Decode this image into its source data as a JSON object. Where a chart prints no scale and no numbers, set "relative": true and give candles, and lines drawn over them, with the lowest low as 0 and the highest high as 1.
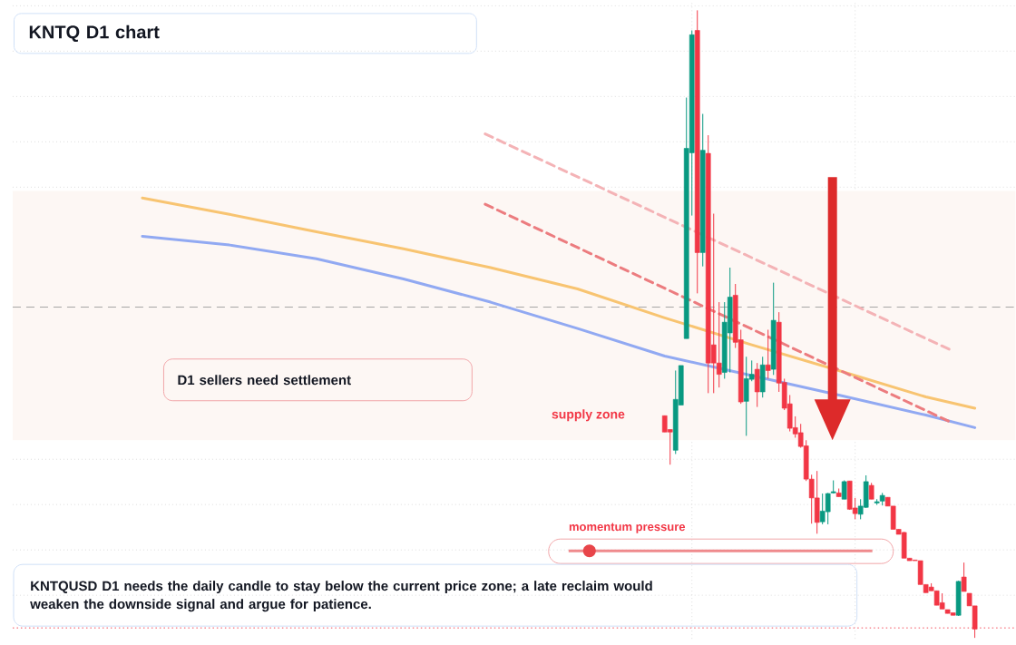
{
  "chart_data": {
    "type": "candlestick",
    "title": "KNTQ D1 chart",
    "relative": true,
    "grid": true,
    "annotations": [
      "D1 sellers need settlement",
      "momentum pressure",
      "KNTQUSD D1 needs the daily candle to stay below the current price zone; a late reclaim would weaken the downside signal and argue for patience."
    ],
    "categories": [
      null,
      null,
      null,
      null,
      null,
      null,
      null,
      null,
      null,
      null,
      null,
      null,
      null,
      null,
      null,
      null,
      null,
      null,
      null,
      null,
      null,
      null,
      null,
      null,
      null,
      null,
      null,
      null,
      null,
      null,
      null,
      null,
      null,
      null,
      null,
      null,
      null,
      null,
      null,
      null,
      null,
      null,
      null,
      null,
      null,
      null,
      null,
      null,
      null,
      null,
      null,
      null,
      null,
      null,
      null,
      null,
      null,
      null,
      null,
      null,
      null,
      null,
      null,
      null,
      null,
      null,
      null,
      null,
      null,
      null,
      null,
      null,
      null,
      null,
      null,
      null,
      null,
      null,
      null,
      null,
      null,
      null,
      null,
      null,
      null,
      null,
      null,
      null,
      null,
      null,
      null,
      null,
      null,
      null,
      null,
      null,
      null,
      null,
      null,
      null,
      null,
      null,
      null,
      null,
      null,
      null,
      null,
      null,
      null,
      null,
      null,
      null,
      null,
      null,
      null,
      null,
      null,
      null,
      null,
      null,
      null,
      null,
      null,
      null,
      null,
      null,
      null,
      null,
      null,
      null,
      null,
      null,
      null,
      null,
      null,
      null,
      null,
      null,
      null,
      null,
      null,
      null,
      null,
      null,
      null,
      null,
      null,
      null,
      null,
      null,
      null,
      null,
      null,
      null
    ],
    "ohlc": [
      null,
      null,
      null,
      null,
      null,
      null,
      null,
      null,
      null,
      null,
      null,
      null,
      null,
      null,
      null,
      null,
      null,
      null,
      null,
      null,
      null,
      null,
      null,
      null,
      null,
      null,
      null,
      null,
      null,
      null,
      null,
      null,
      null,
      null,
      null,
      null,
      null,
      null,
      null,
      null,
      null,
      null,
      null,
      null,
      null,
      null,
      null,
      null,
      null,
      null,
      null,
      null,
      null,
      null,
      null,
      null,
      null,
      null,
      null,
      null,
      null,
      null,
      null,
      null,
      null,
      null,
      null,
      null,
      null,
      null,
      null,
      null,
      null,
      null,
      null,
      null,
      null,
      null,
      null,
      null,
      null,
      null,
      null,
      null,
      null,
      null,
      null,
      null,
      null,
      null,
      null,
      null,
      null,
      null,
      null,
      null,
      [
        0.354,
        0.354,
        0.328,
        0.328
      ],
      [
        0.332,
        0.332,
        0.276,
        0.328
      ],
      [
        0.299,
        0.426,
        0.293,
        0.38
      ],
      [
        0.371,
        0.434,
        0.371,
        0.434
      ],
      [
        0.477,
        0.861,
        0.477,
        0.78
      ],
      [
        0.773,
        0.968,
        0.673,
        0.961
      ],
      [
        0.968,
        1.0,
        0.549,
        0.614
      ],
      [
        0.614,
        0.835,
        0.592,
        0.777
      ],
      [
        0.772,
        0.801,
        0.39,
        0.438
      ],
      [
        0.467,
        0.676,
        0.39,
        0.438
      ],
      [
        0.438,
        0.535,
        0.399,
        0.42
      ],
      [
        0.423,
        0.535,
        0.413,
        0.503
      ],
      [
        0.486,
        0.59,
        0.423,
        0.543
      ],
      [
        0.546,
        0.564,
        0.462,
        0.471
      ],
      [
        0.475,
        0.491,
        0.373,
        0.376
      ],
      [
        0.377,
        0.448,
        0.322,
        0.413
      ],
      [
        0.412,
        0.442,
        0.409,
        0.42
      ],
      [
        0.428,
        0.438,
        0.368,
        0.392
      ],
      [
        0.392,
        0.448,
        0.383,
        0.435
      ],
      [
        0.435,
        0.491,
        0.413,
        0.426
      ],
      [
        0.428,
        0.566,
        0.419,
        0.506
      ],
      [
        0.503,
        0.519,
        0.392,
        0.406
      ],
      [
        0.407,
        0.413,
        0.363,
        0.366
      ],
      [
        0.373,
        0.387,
        0.329,
        0.334
      ],
      [
        0.335,
        0.353,
        0.319,
        0.325
      ],
      [
        0.327,
        0.341,
        0.303,
        0.305
      ],
      [
        0.306,
        0.315,
        0.25,
        0.253
      ],
      [
        0.253,
        0.26,
        0.182,
        0.223
      ],
      [
        0.223,
        0.266,
        0.166,
        0.184
      ],
      [
        0.185,
        0.23,
        0.181,
        0.202
      ],
      [
        0.201,
        0.231,
        0.181,
        0.23
      ],
      [
        0.231,
        0.251,
        0.23,
        0.233
      ],
      [
        0.231,
        0.238,
        0.225,
        0.225
      ],
      [
        0.221,
        0.251,
        0.221,
        0.249
      ],
      [
        0.25,
        0.25,
        0.204,
        0.205
      ],
      [
        0.207,
        0.223,
        0.189,
        0.198
      ],
      [
        0.197,
        0.221,
        0.189,
        0.21
      ],
      [
        0.208,
        0.259,
        0.207,
        0.249
      ],
      [
        0.243,
        0.247,
        0.221,
        0.221
      ],
      [
        0.215,
        0.221,
        0.212,
        0.217
      ],
      [
        0.218,
        0.231,
        0.211,
        0.227
      ],
      [
        0.224,
        0.224,
        0.21,
        0.21
      ],
      [
        0.21,
        0.21,
        0.173,
        0.173
      ],
      [
        0.173,
        0.173,
        0.165,
        0.165
      ],
      [
        0.168,
        0.169,
        0.127,
        0.127
      ],
      [
        0.127,
        0.127,
        0.123,
        0.123
      ],
      [
        0.124,
        0.124,
        0.123,
        0.123
      ],
      [
        0.123,
        0.123,
        0.085,
        0.085
      ],
      [
        0.085,
        0.085,
        0.072,
        0.072
      ],
      [
        0.081,
        0.087,
        0.075,
        0.075
      ],
      [
        0.075,
        0.075,
        0.052,
        0.052
      ],
      [
        0.056,
        0.071,
        0.046,
        0.046
      ],
      [
        0.045,
        0.045,
        0.039,
        0.039
      ],
      [
        0.04,
        0.04,
        0.036,
        0.036
      ],
      [
        0.036,
        0.091,
        0.035,
        0.09
      ],
      [
        0.097,
        0.12,
        0.074,
        0.074
      ],
      [
        0.071,
        0.071,
        0.051,
        0.051
      ],
      [
        0.051,
        0.051,
        0.0,
        0.014
      ]
    ],
    "series": [
      {
        "type": "line",
        "color": "#f8c471",
        "line_style": "solid",
        "values": [
          0.701,
          null,
          null,
          null,
          null,
          null,
          null,
          null,
          null,
          null,
          null,
          null,
          null,
          null,
          null,
          null,
          0.675,
          null,
          null,
          null,
          null,
          null,
          null,
          null,
          null,
          null,
          null,
          null,
          null,
          null,
          null,
          null,
          0.647,
          null,
          null,
          null,
          null,
          null,
          null,
          null,
          null,
          null,
          null,
          null,
          null,
          null,
          null,
          null,
          0.62,
          null,
          null,
          null,
          null,
          null,
          null,
          null,
          null,
          null,
          null,
          null,
          null,
          null,
          null,
          null,
          0.59,
          null,
          null,
          null,
          null,
          null,
          null,
          null,
          null,
          null,
          null,
          null,
          null,
          null,
          null,
          null,
          0.556,
          null,
          null,
          null,
          null,
          null,
          null,
          null,
          null,
          null,
          null,
          null,
          null,
          null,
          null,
          null,
          0.51,
          null,
          null,
          null,
          null,
          null,
          null,
          null,
          null,
          null,
          null,
          null,
          null,
          null,
          null,
          null,
          0.467,
          null,
          null,
          null,
          null,
          null,
          null,
          null,
          null,
          null,
          null,
          null,
          null,
          null,
          null,
          null,
          0.426,
          null,
          null,
          null,
          null,
          null,
          null,
          null,
          null,
          null,
          null,
          null,
          null,
          null,
          null,
          null,
          0.384,
          null,
          null,
          null,
          null,
          null,
          null,
          null,
          null,
          0.366
        ]
      },
      {
        "type": "line",
        "color": "#91a9f2",
        "line_style": "solid",
        "values": [
          0.64,
          null,
          null,
          null,
          null,
          null,
          null,
          null,
          null,
          null,
          null,
          null,
          null,
          null,
          null,
          null,
          0.626,
          null,
          null,
          null,
          null,
          null,
          null,
          null,
          null,
          null,
          null,
          null,
          null,
          null,
          null,
          null,
          0.604,
          null,
          null,
          null,
          null,
          null,
          null,
          null,
          null,
          null,
          null,
          null,
          null,
          null,
          null,
          null,
          0.572,
          null,
          null,
          null,
          null,
          null,
          null,
          null,
          null,
          null,
          null,
          null,
          null,
          null,
          null,
          null,
          0.535,
          null,
          null,
          null,
          null,
          null,
          null,
          null,
          null,
          null,
          null,
          null,
          null,
          null,
          null,
          null,
          0.493,
          null,
          null,
          null,
          null,
          null,
          null,
          null,
          null,
          null,
          null,
          null,
          null,
          null,
          null,
          null,
          0.449,
          null,
          null,
          null,
          null,
          null,
          null,
          null,
          null,
          null,
          null,
          null,
          null,
          null,
          null,
          null,
          0.418,
          null,
          null,
          null,
          null,
          null,
          null,
          null,
          null,
          null,
          null,
          null,
          null,
          null,
          null,
          null,
          0.387,
          null,
          null,
          null,
          null,
          null,
          null,
          null,
          null,
          null,
          null,
          null,
          null,
          null,
          null,
          null,
          0.355,
          null,
          null,
          null,
          null,
          null,
          null,
          null,
          null,
          0.335
        ]
      },
      {
        "type": "line",
        "color": "#f4b3b6",
        "line_style": "dashed",
        "values": [
          null,
          null,
          null,
          null,
          null,
          null,
          null,
          null,
          null,
          null,
          null,
          null,
          null,
          null,
          null,
          null,
          null,
          null,
          null,
          null,
          null,
          null,
          null,
          null,
          null,
          null,
          null,
          null,
          null,
          null,
          null,
          null,
          null,
          null,
          null,
          null,
          null,
          null,
          null,
          null,
          null,
          null,
          null,
          null,
          null,
          null,
          null,
          null,
          null,
          null,
          null,
          null,
          null,
          null,
          null,
          null,
          null,
          null,
          null,
          null,
          null,
          null,
          null,
          0.803,
          null,
          null,
          null,
          null,
          null,
          null,
          null,
          null,
          null,
          null,
          null,
          null,
          null,
          null,
          null,
          null,
          null,
          null,
          null,
          null,
          null,
          null,
          null,
          null,
          null,
          null,
          null,
          null,
          null,
          null,
          null,
          null,
          null,
          null,
          null,
          null,
          null,
          null,
          null,
          null,
          null,
          null,
          null,
          null,
          null,
          null,
          null,
          null,
          null,
          null,
          null,
          null,
          null,
          null,
          null,
          null,
          null,
          null,
          null,
          null,
          null,
          null,
          null,
          null,
          null,
          null,
          null,
          null,
          null,
          null,
          null,
          null,
          null,
          null,
          null,
          null,
          null,
          null,
          null,
          null,
          null,
          null,
          null,
          null,
          null,
          0.457,
          null,
          null,
          null,
          null
        ]
      },
      {
        "type": "line",
        "color": "#ec7c7f",
        "line_style": "dashed",
        "values": [
          null,
          null,
          null,
          null,
          null,
          null,
          null,
          null,
          null,
          null,
          null,
          null,
          null,
          null,
          null,
          null,
          null,
          null,
          null,
          null,
          null,
          null,
          null,
          null,
          null,
          null,
          null,
          null,
          null,
          null,
          null,
          null,
          null,
          null,
          null,
          null,
          null,
          null,
          null,
          null,
          null,
          null,
          null,
          null,
          null,
          null,
          null,
          null,
          null,
          null,
          null,
          null,
          null,
          null,
          null,
          null,
          null,
          null,
          null,
          null,
          null,
          null,
          null,
          0.691,
          null,
          null,
          null,
          null,
          null,
          null,
          null,
          null,
          null,
          null,
          null,
          null,
          null,
          null,
          null,
          null,
          null,
          null,
          null,
          null,
          null,
          null,
          null,
          null,
          null,
          null,
          null,
          null,
          null,
          null,
          null,
          null,
          null,
          null,
          null,
          null,
          null,
          null,
          null,
          null,
          null,
          null,
          null,
          null,
          null,
          null,
          null,
          null,
          null,
          null,
          null,
          null,
          null,
          null,
          null,
          null,
          null,
          null,
          null,
          null,
          null,
          null,
          null,
          null,
          null,
          null,
          null,
          null,
          null,
          null,
          null,
          null,
          null,
          null,
          null,
          null,
          null,
          null,
          null,
          null,
          null,
          null,
          null,
          null,
          null,
          0.342,
          null,
          null,
          null,
          null
        ]
      }
    ],
    "ref_lines": [
      {
        "axis": "y",
        "value": 0.527,
        "color": "#9e9e9e",
        "line_style": "dashed"
      },
      {
        "axis": "y",
        "value": 0.016,
        "color": "#f23645",
        "line_style": "dotted"
      }
    ],
    "bands": [
      {
        "axis": "y",
        "from": 0.315,
        "to": 0.712,
        "label": "supply zone",
        "color": "#fdf7f4"
      }
    ]
  }
}
